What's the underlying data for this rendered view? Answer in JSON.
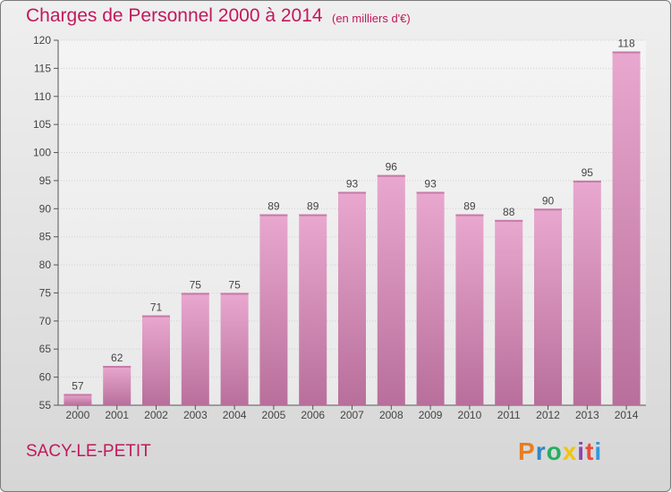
{
  "title": "Charges de Personnel 2000 à 2014",
  "subtitle": "(en milliers d'€)",
  "commune": "SACY-LE-PETIT",
  "logo_text": "Proxiti",
  "colors": {
    "accent": "#c2185b",
    "bar_top": "#e9a8cf",
    "bar_bottom": "#b86f9b"
  },
  "chart_data": {
    "type": "bar",
    "categories": [
      "2000",
      "2001",
      "2002",
      "2003",
      "2004",
      "2005",
      "2006",
      "2007",
      "2008",
      "2009",
      "2010",
      "2011",
      "2012",
      "2013",
      "2014"
    ],
    "values": [
      57,
      62,
      71,
      75,
      75,
      89,
      89,
      93,
      96,
      93,
      89,
      88,
      90,
      95,
      118
    ],
    "ylim": [
      55,
      120
    ],
    "yticks": [
      55,
      60,
      65,
      70,
      75,
      80,
      85,
      90,
      95,
      100,
      105,
      110,
      115,
      120
    ],
    "grid": true,
    "title": "Charges de Personnel 2000 à 2014",
    "xlabel": "",
    "ylabel": ""
  }
}
